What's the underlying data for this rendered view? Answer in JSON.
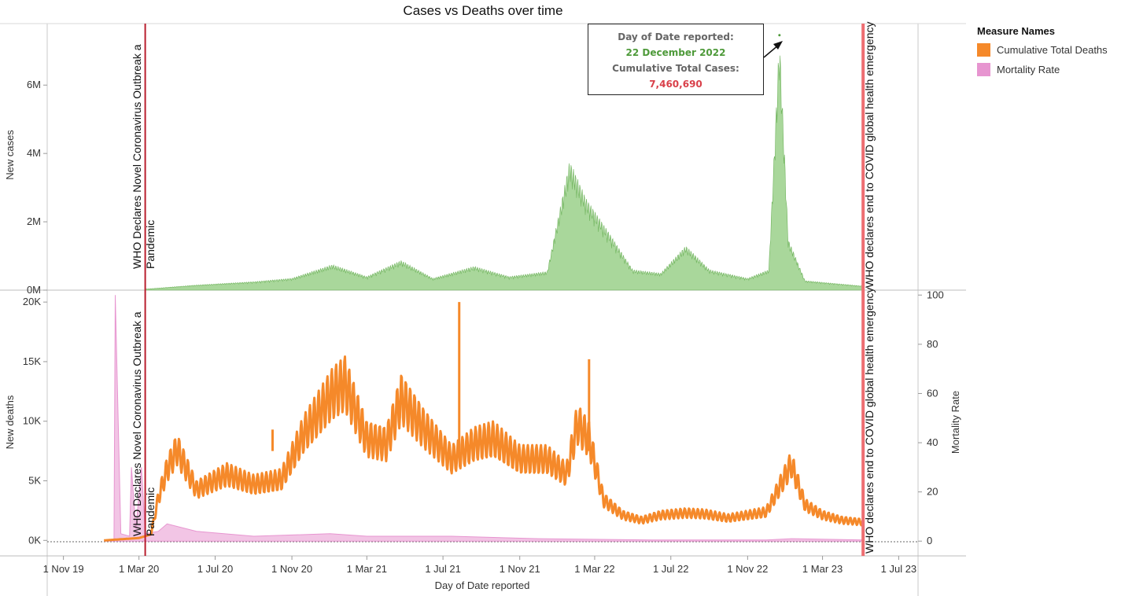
{
  "title": "Cases vs Deaths over time",
  "legend": {
    "title": "Measure Names",
    "items": [
      {
        "label": "Cumulative Total Deaths",
        "color": "#f5892a"
      },
      {
        "label": "Mortality Rate",
        "color": "#e795d0"
      }
    ]
  },
  "tooltip": {
    "label1": "Day of Date reported:",
    "value1": "22 December 2022",
    "label2": "Cumulative Total Cases:",
    "value2": "7,460,690"
  },
  "annotations": {
    "who_start_line1": "WHO Declares Novel Coronavirus Outbreak a",
    "who_start_line2": "Pandemic",
    "who_end": "WHO declares end to COVID global health emergency"
  },
  "chart_data": [
    {
      "type": "area",
      "ylabel": "New cases",
      "ylim": [
        0,
        7800000
      ],
      "yticks": [
        {
          "value": 0,
          "label": "0M"
        },
        {
          "value": 2000000,
          "label": "2M"
        },
        {
          "value": 4000000,
          "label": "4M"
        },
        {
          "value": 6000000,
          "label": "6M"
        }
      ],
      "color": "#8cc97a",
      "series": [
        {
          "name": "",
          "x": [
            "2020-03-11",
            "2020-06-01",
            "2020-09-01",
            "2020-11-01",
            "2021-01-05",
            "2021-03-01",
            "2021-04-25",
            "2021-06-15",
            "2021-08-20",
            "2021-10-15",
            "2021-12-15",
            "2022-01-20",
            "2022-02-15",
            "2022-03-20",
            "2022-05-01",
            "2022-06-15",
            "2022-07-25",
            "2022-09-01",
            "2022-11-01",
            "2022-12-05",
            "2022-12-22",
            "2023-01-05",
            "2023-02-01",
            "2023-05-05"
          ],
          "y": [
            30000,
            150000,
            250000,
            350000,
            750000,
            400000,
            870000,
            350000,
            700000,
            400000,
            550000,
            3800000,
            2700000,
            1800000,
            600000,
            500000,
            1300000,
            600000,
            350000,
            600000,
            7460690,
            1500000,
            280000,
            120000
          ]
        }
      ]
    },
    {
      "type": "line",
      "ylabel": "New deaths",
      "y2label": "Mortality Rate",
      "xlabel": "Day of Date reported",
      "ylim": [
        -1300,
        21000
      ],
      "yticks": [
        {
          "value": 0,
          "label": "0K"
        },
        {
          "value": 5000,
          "label": "5K"
        },
        {
          "value": 10000,
          "label": "10K"
        },
        {
          "value": 15000,
          "label": "15K"
        },
        {
          "value": 20000,
          "label": "20K"
        }
      ],
      "y2lim": [
        -6,
        102
      ],
      "y2ticks": [
        0,
        20,
        40,
        60,
        80,
        100
      ],
      "xticks": [
        {
          "date": "2019-11-01",
          "label": "1 Nov 19"
        },
        {
          "date": "2020-03-01",
          "label": "1 Mar 20"
        },
        {
          "date": "2020-07-01",
          "label": "1 Jul 20"
        },
        {
          "date": "2020-11-01",
          "label": "1 Nov 20"
        },
        {
          "date": "2021-03-01",
          "label": "1 Mar 21"
        },
        {
          "date": "2021-07-01",
          "label": "1 Jul 21"
        },
        {
          "date": "2021-11-01",
          "label": "1 Nov 21"
        },
        {
          "date": "2022-03-01",
          "label": "1 Mar 22"
        },
        {
          "date": "2022-07-01",
          "label": "1 Jul 22"
        },
        {
          "date": "2022-11-01",
          "label": "1 Nov 22"
        },
        {
          "date": "2023-03-01",
          "label": "1 Mar 23"
        },
        {
          "date": "2023-07-01",
          "label": "1 Jul 23"
        }
      ],
      "series": [
        {
          "name": "Cumulative Total Deaths",
          "color": "#f5892a",
          "x": [
            "2020-01-05",
            "2020-03-01",
            "2020-03-20",
            "2020-04-01",
            "2020-04-15",
            "2020-05-01",
            "2020-06-01",
            "2020-07-20",
            "2020-09-01",
            "2020-10-15",
            "2020-11-20",
            "2021-01-05",
            "2021-01-25",
            "2021-03-01",
            "2021-04-01",
            "2021-04-25",
            "2021-06-01",
            "2021-07-15",
            "2021-08-20",
            "2021-09-20",
            "2021-11-01",
            "2021-12-15",
            "2022-01-15",
            "2022-02-01",
            "2022-02-20",
            "2022-03-15",
            "2022-04-15",
            "2022-05-15",
            "2022-06-15",
            "2022-07-25",
            "2022-08-25",
            "2022-10-01",
            "2022-11-01",
            "2022-12-01",
            "2023-01-10",
            "2023-02-01",
            "2023-03-01",
            "2023-04-01",
            "2023-05-05"
          ],
          "y": [
            0,
            200,
            500,
            4200,
            7000,
            9000,
            5000,
            6500,
            5500,
            6000,
            10500,
            14500,
            15500,
            10000,
            9500,
            14000,
            11000,
            8000,
            9500,
            10000,
            8000,
            8000,
            6500,
            11500,
            10000,
            4000,
            2500,
            2000,
            2500,
            2700,
            2600,
            2200,
            2500,
            2800,
            7500,
            3500,
            2500,
            2000,
            1800
          ]
        },
        {
          "name": "Mortality Rate",
          "color": "#e795d0",
          "x": [
            "2020-01-05",
            "2020-01-21",
            "2020-01-23",
            "2020-02-01",
            "2020-02-15",
            "2020-02-18",
            "2020-02-25",
            "2020-03-05",
            "2020-03-11",
            "2020-04-01",
            "2020-04-15",
            "2020-06-01",
            "2020-09-01",
            "2021-01-01",
            "2021-03-01",
            "2021-07-15",
            "2021-12-01",
            "2022-06-01",
            "2022-12-01",
            "2023-01-10",
            "2023-05-05"
          ],
          "y": [
            0,
            0,
            100,
            3,
            2,
            30,
            5,
            30,
            3,
            4,
            7,
            4,
            2,
            3,
            2,
            2,
            1,
            0.5,
            0.5,
            1,
            0.5
          ]
        }
      ]
    }
  ]
}
